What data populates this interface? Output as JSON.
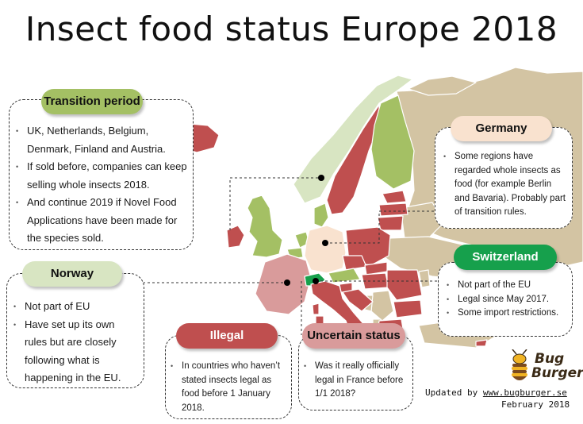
{
  "title": "Insect food status Europe 2018",
  "colors": {
    "transition": "#a4c064",
    "transition_light": "#d8e5c2",
    "illegal": "#bf4f4f",
    "uncertain": "#d99b9b",
    "germany": "#f9e2cf",
    "switzerland": "#16a04c",
    "non_eu": "#d3c4a3"
  },
  "legend": {
    "transition": {
      "label": "Transition period",
      "bullets": [
        "UK, Netherlands, Belgium, Denmark, Finland and Austria.",
        "If sold before, companies can keep selling whole insects 2018.",
        "And continue 2019 if Novel Food Applications have been made for the species sold."
      ]
    },
    "norway": {
      "label": "Norway",
      "bullets": [
        "Not part of EU",
        "Have set up its own rules but are closely following what is happening in the EU."
      ]
    },
    "illegal": {
      "label": "Illegal",
      "bullets": [
        "In countries who haven’t stated insects legal as food before 1 January 2018."
      ]
    },
    "uncertain": {
      "label": "Uncertain status",
      "bullets": [
        "Was it really officially legal in France before 1/1 2018?"
      ]
    },
    "germany": {
      "label": "Germany",
      "bullets": [
        "Some regions have regarded whole insects as food (for example Berlin and Bavaria). Probably part of transition rules."
      ]
    },
    "switzerland": {
      "label": "Switzerland",
      "bullets": [
        "Not part of the EU",
        "Legal since May 2017.",
        "Some import restrictions."
      ]
    }
  },
  "logo": {
    "line1": "Bug",
    "line2": "Burger",
    "icon": "bug-icon"
  },
  "footer": {
    "updated_prefix": "Updated by",
    "site": "www.bugburger.se",
    "date": "February 2018"
  }
}
